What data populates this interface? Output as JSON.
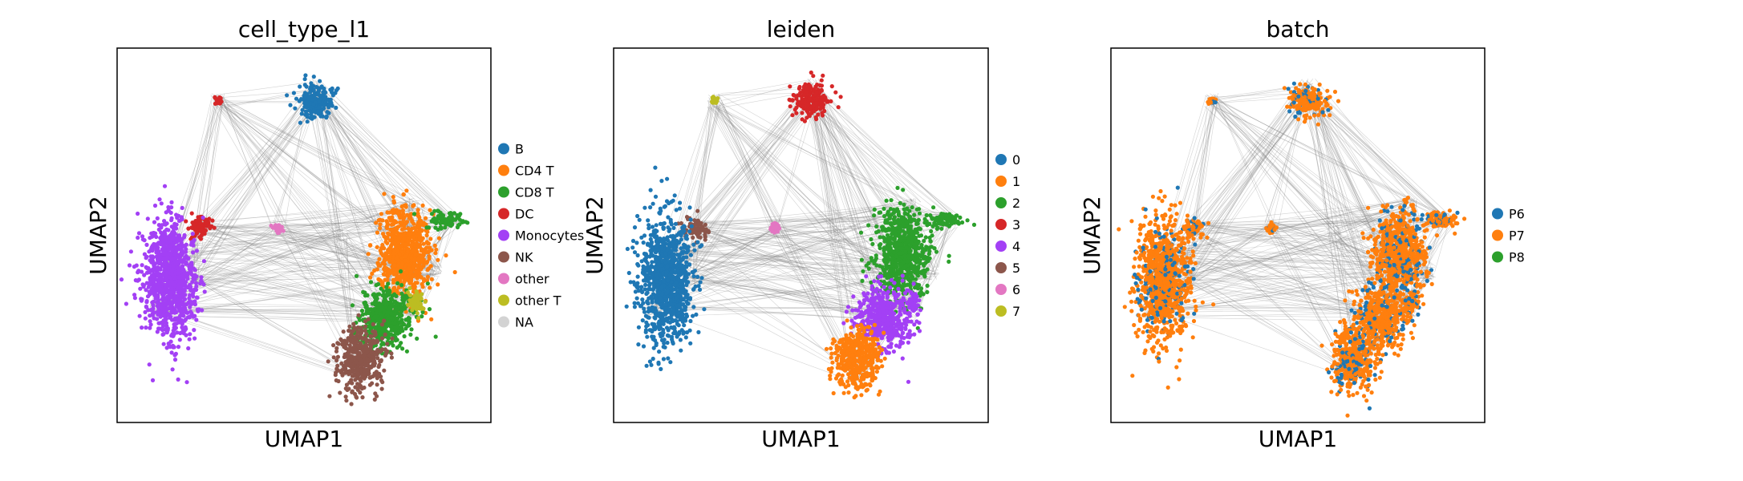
{
  "chart_data": [
    {
      "type": "scatter",
      "title": "cell_type_l1",
      "xlabel": "UMAP1",
      "ylabel": "UMAP2",
      "grid": false,
      "legend_position": "right",
      "overlay": "PAGA graph edges (gray) connecting cluster centroids",
      "legend": [
        {
          "label": "B",
          "color": "#1f77b4"
        },
        {
          "label": "CD4 T",
          "color": "#ff7f0e"
        },
        {
          "label": "CD8 T",
          "color": "#2ca02c"
        },
        {
          "label": "DC",
          "color": "#d62728"
        },
        {
          "label": "Monocytes",
          "color": "#a340f5"
        },
        {
          "label": "NK",
          "color": "#8c564b"
        },
        {
          "label": "other",
          "color": "#e377c2"
        },
        {
          "label": "other T",
          "color": "#bcbd22"
        },
        {
          "label": "NA",
          "color": "#d3d3d3"
        }
      ]
    },
    {
      "type": "scatter",
      "title": "leiden",
      "xlabel": "UMAP1",
      "ylabel": "UMAP2",
      "grid": false,
      "legend_position": "right",
      "overlay": "PAGA graph edges (gray) connecting cluster centroids",
      "legend": [
        {
          "label": "0",
          "color": "#1f77b4"
        },
        {
          "label": "1",
          "color": "#ff7f0e"
        },
        {
          "label": "2",
          "color": "#2ca02c"
        },
        {
          "label": "3",
          "color": "#d62728"
        },
        {
          "label": "4",
          "color": "#a340f5"
        },
        {
          "label": "5",
          "color": "#8c564b"
        },
        {
          "label": "6",
          "color": "#e377c2"
        },
        {
          "label": "7",
          "color": "#bcbd22"
        }
      ]
    },
    {
      "type": "scatter",
      "title": "batch",
      "xlabel": "UMAP1",
      "ylabel": "UMAP2",
      "grid": false,
      "legend_position": "right",
      "overlay": "PAGA graph edges (gray) connecting cluster centroids",
      "legend": [
        {
          "label": "P6",
          "color": "#1f77b4"
        },
        {
          "label": "P7",
          "color": "#ff7f0e"
        },
        {
          "label": "P8",
          "color": "#2ca02c"
        }
      ]
    }
  ],
  "colors": {
    "edge": "#808080",
    "frame": "#000000"
  }
}
